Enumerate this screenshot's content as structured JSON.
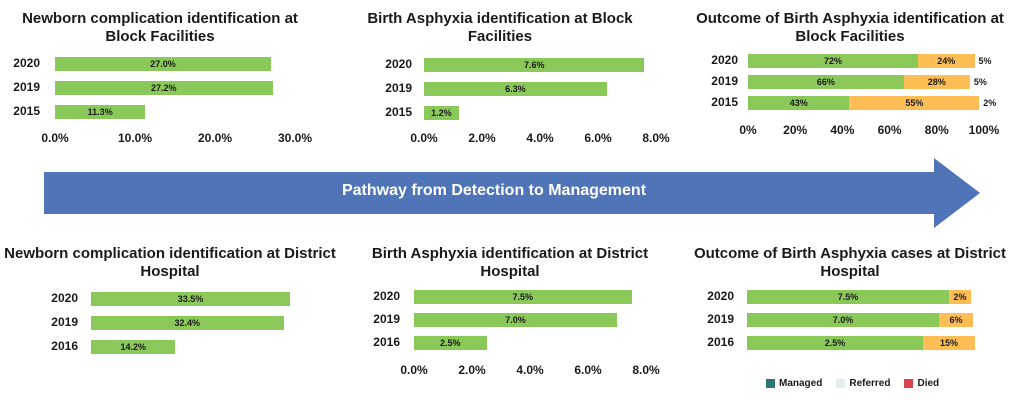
{
  "arrow_label": "Pathway from Detection to Management",
  "colors": {
    "green": "#8BC85A",
    "orange": "#FFBE55",
    "arrow": "#4F74B8",
    "managed": "#2E7575",
    "referred": "#E4EEF0",
    "died": "#D9434B"
  },
  "legend": [
    {
      "label": "Managed",
      "color": "#2E7575"
    },
    {
      "label": "Referred",
      "color": "#E4EEF0"
    },
    {
      "label": "Died",
      "color": "#D9434B"
    }
  ],
  "chart_data": [
    {
      "type": "bar",
      "orientation": "horizontal",
      "title": "Newborn complication identification at Block Facilities",
      "categories": [
        "2020",
        "2019",
        "2015"
      ],
      "values": [
        27.0,
        27.2,
        11.3
      ],
      "value_labels": [
        "27.0%",
        "27.2%",
        "11.3%"
      ],
      "xticks": [
        "0.0%",
        "10.0%",
        "20.0%",
        "30.0%"
      ],
      "xlim": [
        0,
        30
      ]
    },
    {
      "type": "bar",
      "orientation": "horizontal",
      "title": "Birth Asphyxia identification at Block Facilities",
      "categories": [
        "2020",
        "2019",
        "2015"
      ],
      "values": [
        7.6,
        6.3,
        1.2
      ],
      "value_labels": [
        "7.6%",
        "6.3%",
        "1.2%"
      ],
      "xticks": [
        "0.0%",
        "2.0%",
        "4.0%",
        "6.0%",
        "8.0%"
      ],
      "xlim": [
        0,
        8
      ]
    },
    {
      "type": "bar",
      "stacked": true,
      "orientation": "horizontal",
      "title": "Outcome of Birth Asphyxia identification at Block Facilities",
      "categories": [
        "2020",
        "2019",
        "2015"
      ],
      "series": [
        {
          "values": [
            72,
            66,
            43
          ],
          "labels": [
            "72%",
            "66%",
            "43%"
          ],
          "color": "#8BC85A"
        },
        {
          "values": [
            24,
            28,
            55
          ],
          "labels": [
            "24%",
            "28%",
            "55%"
          ],
          "color": "#FFBE55"
        },
        {
          "values": [
            5,
            5,
            2
          ],
          "labels": [
            "5%",
            "5%",
            "2%"
          ],
          "color": "none"
        }
      ],
      "xticks": [
        "0%",
        "20%",
        "40%",
        "60%",
        "80%",
        "100%"
      ],
      "xlim": [
        0,
        100
      ]
    },
    {
      "type": "bar",
      "orientation": "horizontal",
      "title": "Newborn complication identification at District Hospital",
      "categories": [
        "2020",
        "2019",
        "2016"
      ],
      "values": [
        33.5,
        32.4,
        14.2
      ],
      "value_labels": [
        "33.5%",
        "32.4%",
        "14.2%"
      ],
      "xticks": [],
      "xlim": [
        0,
        36
      ]
    },
    {
      "type": "bar",
      "orientation": "horizontal",
      "title": "Birth Asphyxia identification at District Hospital",
      "categories": [
        "2020",
        "2019",
        "2016"
      ],
      "values": [
        7.5,
        7.0,
        2.5
      ],
      "value_labels": [
        "7.5%",
        "7.0%",
        "2.5%"
      ],
      "xticks": [
        "0.0%",
        "2.0%",
        "4.0%",
        "6.0%",
        "8.0%"
      ],
      "xlim": [
        0,
        8
      ]
    },
    {
      "type": "bar",
      "stacked": true,
      "orientation": "horizontal",
      "title": "Outcome of Birth Asphyxia cases at District Hospital",
      "categories": [
        "2020",
        "2019",
        "2016"
      ],
      "series": [
        {
          "values": [
            7.5,
            7.0,
            2.5
          ],
          "labels": [
            "7.5%",
            "7.0%",
            "2.5%"
          ],
          "color": "#8BC85A"
        },
        {
          "values": [
            2,
            6,
            15
          ],
          "labels": [
            "2%",
            "6%",
            "15%"
          ],
          "color": "#FFBE55"
        }
      ],
      "xticks": [],
      "xlim": [
        0,
        100
      ]
    }
  ]
}
